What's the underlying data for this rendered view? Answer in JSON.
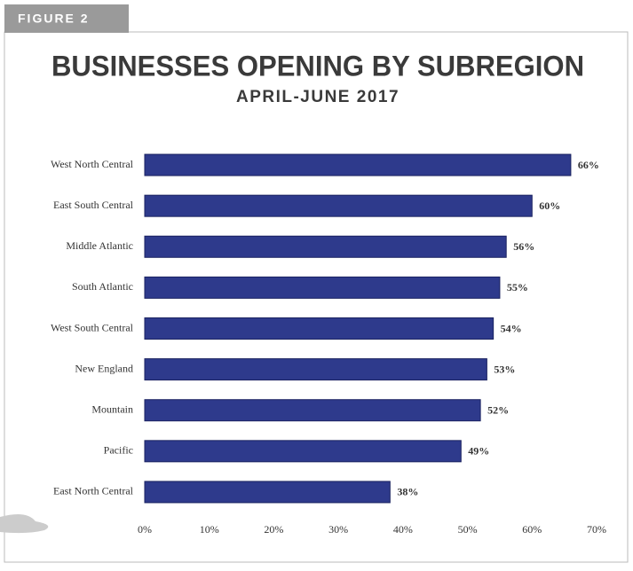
{
  "figure_label": "FIGURE 2",
  "chart_data": {
    "type": "bar",
    "orientation": "horizontal",
    "title": "BUSINESSES OPENING BY SUBREGION",
    "subtitle": "APRIL-JUNE 2017",
    "categories": [
      "West North Central",
      "East South Central",
      "Middle Atlantic",
      "South Atlantic",
      "West South Central",
      "New England",
      "Mountain",
      "Pacific",
      "East North Central"
    ],
    "values": [
      66,
      60,
      56,
      55,
      54,
      53,
      52,
      49,
      38
    ],
    "value_labels": [
      "66%",
      "60%",
      "56%",
      "55%",
      "54%",
      "53%",
      "52%",
      "49%",
      "38%"
    ],
    "color": "#2e3a8c",
    "xlim": [
      0,
      70
    ],
    "xticks": [
      {
        "value": 0,
        "label": "0%"
      },
      {
        "value": 10,
        "label": "10%"
      },
      {
        "value": 20,
        "label": "20%"
      },
      {
        "value": 30,
        "label": "30%"
      },
      {
        "value": 40,
        "label": "40%"
      },
      {
        "value": 50,
        "label": "50%"
      },
      {
        "value": 60,
        "label": "60%"
      },
      {
        "value": 70,
        "label": "70%"
      }
    ],
    "grid": false
  }
}
